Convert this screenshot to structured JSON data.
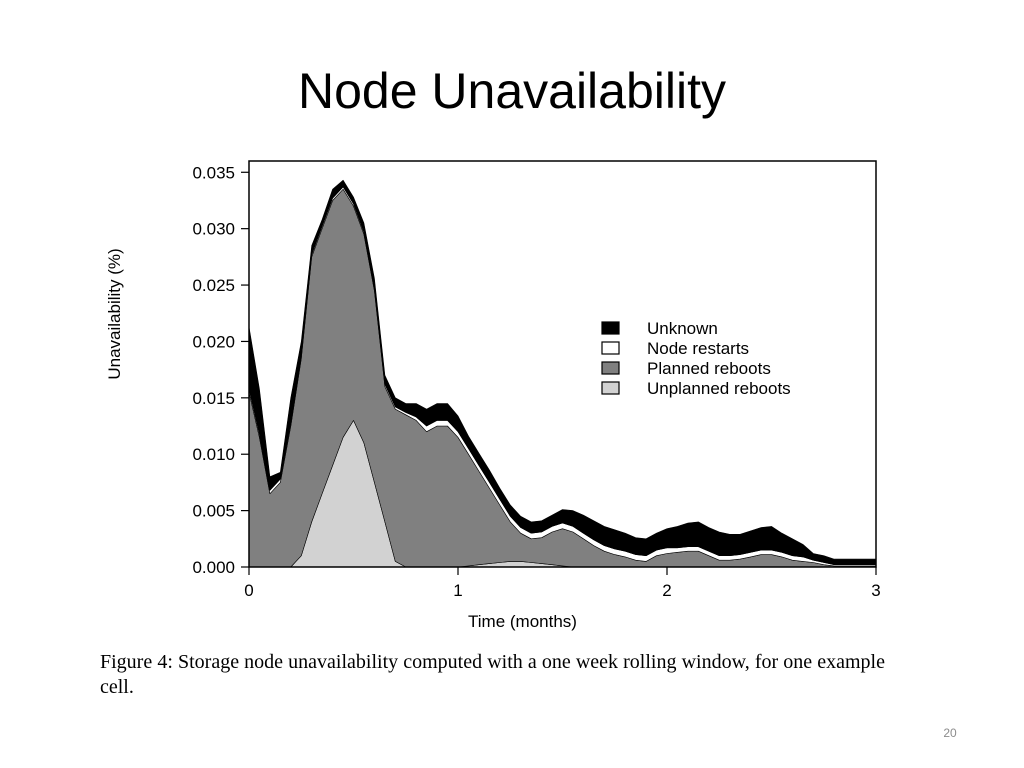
{
  "slide": {
    "title": "Node Unavailability",
    "caption": "Figure 4:  Storage node unavailability computed with a one week rolling window, for one example cell.",
    "page_number": "20"
  },
  "chart_data": {
    "type": "area",
    "stacked": true,
    "xlabel": "Time (months)",
    "ylabel": "Unavailability (%)",
    "xlim": [
      0,
      3
    ],
    "ylim": [
      0,
      0.036
    ],
    "x_ticks": [
      "0",
      "1",
      "2",
      "3"
    ],
    "y_ticks": [
      "0.000",
      "0.005",
      "0.010",
      "0.015",
      "0.020",
      "0.025",
      "0.030",
      "0.035"
    ],
    "legend_position": "right",
    "grid": false,
    "x": [
      0,
      0.05,
      0.1,
      0.15,
      0.2,
      0.25,
      0.3,
      0.35,
      0.4,
      0.45,
      0.5,
      0.55,
      0.6,
      0.65,
      0.7,
      0.75,
      0.8,
      0.85,
      0.9,
      0.95,
      1.0,
      1.05,
      1.1,
      1.15,
      1.2,
      1.25,
      1.3,
      1.35,
      1.4,
      1.45,
      1.5,
      1.55,
      1.6,
      1.65,
      1.7,
      1.75,
      1.8,
      1.85,
      1.9,
      1.95,
      2.0,
      2.05,
      2.1,
      2.15,
      2.2,
      2.25,
      2.3,
      2.35,
      2.4,
      2.45,
      2.5,
      2.55,
      2.6,
      2.65,
      2.7,
      2.75,
      2.8,
      2.85,
      2.9,
      2.95,
      3.0
    ],
    "series": [
      {
        "name": "Unplanned reboots",
        "color": "#d2d2d2",
        "values": [
          0,
          0,
          0,
          0,
          0,
          0.001,
          0.004,
          0.0065,
          0.009,
          0.0115,
          0.013,
          0.011,
          0.0075,
          0.004,
          0.0005,
          0,
          0,
          0,
          0,
          0,
          0,
          0.0001,
          0.0002,
          0.0003,
          0.0004,
          0.0005,
          0.0005,
          0.0004,
          0.0003,
          0.0002,
          0.0001,
          0,
          0,
          0,
          0,
          0,
          0,
          0,
          0,
          0,
          0,
          0,
          0,
          0,
          0,
          0,
          0,
          0,
          0,
          0,
          0,
          0,
          0,
          0,
          0,
          0,
          0,
          0,
          0,
          0,
          0
        ]
      },
      {
        "name": "Planned reboots",
        "color": "#808080",
        "values": [
          0.0155,
          0.0115,
          0.0065,
          0.0075,
          0.0125,
          0.0175,
          0.0235,
          0.0235,
          0.0235,
          0.022,
          0.019,
          0.0185,
          0.017,
          0.012,
          0.0135,
          0.0135,
          0.013,
          0.012,
          0.0125,
          0.0125,
          0.0115,
          0.0099,
          0.0083,
          0.0067,
          0.0051,
          0.0035,
          0.0025,
          0.0021,
          0.0023,
          0.0029,
          0.0033,
          0.0031,
          0.0025,
          0.0019,
          0.0014,
          0.0011,
          0.0009,
          0.0006,
          0.0005,
          0.001,
          0.0012,
          0.0013,
          0.0014,
          0.0014,
          0.001,
          0.0006,
          0.0006,
          0.0007,
          0.0009,
          0.0011,
          0.0011,
          0.0009,
          0.0006,
          0.0005,
          0.0004,
          0.0002,
          0.0001,
          0.0001,
          0.0001,
          0.0001,
          0.0001
        ]
      },
      {
        "name": "Node restarts",
        "color": "#ffffff",
        "values": [
          0.0003,
          0.0003,
          0.0003,
          0.0003,
          0.0003,
          0.0003,
          0.0002,
          0.0002,
          0.0002,
          0.0002,
          0.0002,
          0.0002,
          0.0002,
          0.0002,
          0.0002,
          0.0002,
          0.0003,
          0.0005,
          0.0005,
          0.0005,
          0.0005,
          0.0005,
          0.0005,
          0.0005,
          0.0005,
          0.0005,
          0.0005,
          0.0005,
          0.0005,
          0.0005,
          0.0005,
          0.0005,
          0.0005,
          0.0005,
          0.0005,
          0.0005,
          0.0005,
          0.0005,
          0.0005,
          0.0005,
          0.0005,
          0.0004,
          0.0004,
          0.0004,
          0.0004,
          0.0004,
          0.0004,
          0.0004,
          0.0004,
          0.0004,
          0.0004,
          0.0004,
          0.0004,
          0.0004,
          0.0002,
          0.0002,
          0.0001,
          0.0001,
          0.0001,
          0.0001,
          0.0001
        ]
      },
      {
        "name": "Unknown",
        "color": "#000000",
        "values": [
          0.0055,
          0.004,
          0.0012,
          0.0006,
          0.0022,
          0.0012,
          0.0008,
          0.0006,
          0.0008,
          0.0006,
          0.0006,
          0.0008,
          0.0009,
          0.0008,
          0.0008,
          0.0008,
          0.0012,
          0.0015,
          0.0015,
          0.0015,
          0.0014,
          0.0011,
          0.0011,
          0.0011,
          0.001,
          0.001,
          0.001,
          0.001,
          0.001,
          0.001,
          0.0012,
          0.0014,
          0.0016,
          0.0017,
          0.0017,
          0.0017,
          0.0016,
          0.0015,
          0.0015,
          0.0015,
          0.0017,
          0.0019,
          0.0021,
          0.0022,
          0.0021,
          0.0021,
          0.0019,
          0.0018,
          0.0019,
          0.002,
          0.0021,
          0.0017,
          0.0015,
          0.0011,
          0.0006,
          0.0006,
          0.0005,
          0.0005,
          0.0005,
          0.0005,
          0.0005
        ]
      }
    ],
    "legend_order": [
      "Unknown",
      "Node restarts",
      "Planned reboots",
      "Unplanned reboots"
    ]
  }
}
